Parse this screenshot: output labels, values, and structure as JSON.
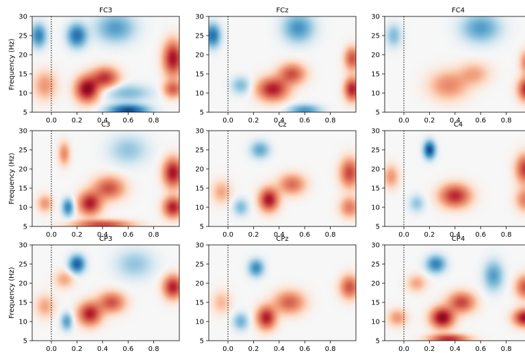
{
  "chart_data": [
    {
      "type": "heatmap",
      "title": "FC3",
      "ylabel": "Frequency (Hz)",
      "xlim": [
        -0.15,
        1.0
      ],
      "ylim": [
        5,
        30
      ],
      "xticks": [
        "0.0",
        "0.2",
        "0.4",
        "0.6",
        "0.8"
      ],
      "yticks": [
        "5",
        "10",
        "15",
        "20",
        "25",
        "30"
      ],
      "event_marker_x": 0.0,
      "blobs": [
        {
          "x": 0.28,
          "y": 11,
          "sx": 0.06,
          "sy": 2.2,
          "v": 0.9
        },
        {
          "x": 0.42,
          "y": 14,
          "sx": 0.07,
          "sy": 1.8,
          "v": 0.65
        },
        {
          "x": 0.95,
          "y": 19,
          "sx": 0.05,
          "sy": 3.0,
          "v": 0.8
        },
        {
          "x": 0.95,
          "y": 11,
          "sx": 0.05,
          "sy": 1.5,
          "v": 0.5
        },
        {
          "x": -0.05,
          "y": 12,
          "sx": 0.06,
          "sy": 2.5,
          "v": 0.3
        },
        {
          "x": 0.2,
          "y": 25,
          "sx": 0.05,
          "sy": 2.0,
          "v": -0.7
        },
        {
          "x": -0.1,
          "y": 25,
          "sx": 0.04,
          "sy": 2.0,
          "v": -0.6
        },
        {
          "x": 0.6,
          "y": 5.5,
          "sx": 0.1,
          "sy": 1.0,
          "v": -0.9
        },
        {
          "x": 0.5,
          "y": 27,
          "sx": 0.1,
          "sy": 2.5,
          "v": -0.45
        },
        {
          "x": 0.6,
          "y": 10,
          "sx": 0.12,
          "sy": 1.5,
          "v": -0.3
        }
      ]
    },
    {
      "type": "heatmap",
      "title": "FCz",
      "ylabel": "",
      "xlim": [
        -0.15,
        1.0
      ],
      "ylim": [
        5,
        30
      ],
      "xticks": [
        "0.0",
        "0.2",
        "0.4",
        "0.6",
        "0.8"
      ],
      "yticks": [
        "5",
        "10",
        "15",
        "20",
        "25",
        "30"
      ],
      "event_marker_x": 0.0,
      "blobs": [
        {
          "x": 0.35,
          "y": 11,
          "sx": 0.08,
          "sy": 2.0,
          "v": 0.75
        },
        {
          "x": 0.5,
          "y": 15,
          "sx": 0.07,
          "sy": 1.8,
          "v": 0.55
        },
        {
          "x": 0.97,
          "y": 11,
          "sx": 0.04,
          "sy": 2.0,
          "v": 0.75
        },
        {
          "x": 0.97,
          "y": 19,
          "sx": 0.04,
          "sy": 2.0,
          "v": 0.55
        },
        {
          "x": -0.12,
          "y": 25,
          "sx": 0.04,
          "sy": 2.0,
          "v": -0.7
        },
        {
          "x": 0.55,
          "y": 27,
          "sx": 0.08,
          "sy": 2.5,
          "v": -0.5
        },
        {
          "x": 0.6,
          "y": 5.5,
          "sx": 0.08,
          "sy": 1.0,
          "v": -0.5
        },
        {
          "x": 0.1,
          "y": 12,
          "sx": 0.05,
          "sy": 1.5,
          "v": -0.3
        }
      ]
    },
    {
      "type": "heatmap",
      "title": "FC4",
      "ylabel": "",
      "xlim": [
        -0.15,
        1.0
      ],
      "ylim": [
        5,
        30
      ],
      "xticks": [
        "0.0",
        "0.2",
        "0.4",
        "0.6",
        "0.8"
      ],
      "yticks": [
        "5",
        "10",
        "15",
        "20",
        "25",
        "30"
      ],
      "event_marker_x": 0.0,
      "blobs": [
        {
          "x": 0.35,
          "y": 12,
          "sx": 0.1,
          "sy": 2.5,
          "v": 0.35
        },
        {
          "x": 0.55,
          "y": 15,
          "sx": 0.08,
          "sy": 2.0,
          "v": 0.25
        },
        {
          "x": 0.97,
          "y": 11,
          "sx": 0.05,
          "sy": 2.0,
          "v": 0.8
        },
        {
          "x": 0.97,
          "y": 18,
          "sx": 0.04,
          "sy": 2.0,
          "v": 0.45
        },
        {
          "x": 0.6,
          "y": 27,
          "sx": 0.1,
          "sy": 2.5,
          "v": -0.45
        },
        {
          "x": -0.08,
          "y": 25,
          "sx": 0.04,
          "sy": 2.0,
          "v": -0.3
        }
      ]
    },
    {
      "type": "heatmap",
      "title": "C3",
      "ylabel": "Frequency (Hz)",
      "xlim": [
        -0.15,
        1.0
      ],
      "ylim": [
        5,
        30
      ],
      "xticks": [
        "0.0",
        "0.2",
        "0.4",
        "0.6",
        "0.8"
      ],
      "yticks": [
        "5",
        "10",
        "15",
        "20",
        "25",
        "30"
      ],
      "event_marker_x": 0.0,
      "blobs": [
        {
          "x": 0.3,
          "y": 11,
          "sx": 0.06,
          "sy": 2.0,
          "v": 0.75
        },
        {
          "x": 0.45,
          "y": 15,
          "sx": 0.08,
          "sy": 2.0,
          "v": 0.55
        },
        {
          "x": 0.95,
          "y": 19,
          "sx": 0.05,
          "sy": 2.5,
          "v": 0.8
        },
        {
          "x": 0.95,
          "y": 10,
          "sx": 0.05,
          "sy": 1.8,
          "v": 0.75
        },
        {
          "x": 0.1,
          "y": 24,
          "sx": 0.03,
          "sy": 2.0,
          "v": 0.35
        },
        {
          "x": 0.13,
          "y": 10,
          "sx": 0.03,
          "sy": 1.5,
          "v": -0.6
        },
        {
          "x": -0.05,
          "y": 11,
          "sx": 0.04,
          "sy": 1.5,
          "v": 0.3
        },
        {
          "x": 0.4,
          "y": 5.5,
          "sx": 0.15,
          "sy": 0.8,
          "v": 0.6
        },
        {
          "x": 0.6,
          "y": 25,
          "sx": 0.1,
          "sy": 2.5,
          "v": -0.25
        }
      ]
    },
    {
      "type": "heatmap",
      "title": "Cz",
      "ylabel": "",
      "xlim": [
        -0.15,
        1.0
      ],
      "ylim": [
        5,
        30
      ],
      "xticks": [
        "0.0",
        "0.2",
        "0.4",
        "0.6",
        "0.8"
      ],
      "yticks": [
        "5",
        "10",
        "15",
        "20",
        "25",
        "30"
      ],
      "event_marker_x": 0.0,
      "blobs": [
        {
          "x": 0.32,
          "y": 12,
          "sx": 0.05,
          "sy": 2.0,
          "v": 0.8
        },
        {
          "x": 0.5,
          "y": 16,
          "sx": 0.07,
          "sy": 1.8,
          "v": 0.45
        },
        {
          "x": 0.95,
          "y": 19,
          "sx": 0.05,
          "sy": 2.5,
          "v": 0.6
        },
        {
          "x": 0.95,
          "y": 10,
          "sx": 0.05,
          "sy": 1.8,
          "v": 0.4
        },
        {
          "x": 0.25,
          "y": 25,
          "sx": 0.05,
          "sy": 1.5,
          "v": -0.4
        },
        {
          "x": 0.1,
          "y": 10,
          "sx": 0.04,
          "sy": 1.5,
          "v": -0.3
        },
        {
          "x": -0.05,
          "y": 14,
          "sx": 0.05,
          "sy": 2.0,
          "v": 0.25
        }
      ]
    },
    {
      "type": "heatmap",
      "title": "C4",
      "ylabel": "",
      "xlim": [
        -0.15,
        1.0
      ],
      "ylim": [
        5,
        30
      ],
      "xticks": [
        "0.0",
        "0.2",
        "0.4",
        "0.6",
        "0.8"
      ],
      "yticks": [
        "5",
        "10",
        "15",
        "20",
        "25",
        "30"
      ],
      "event_marker_x": 0.0,
      "blobs": [
        {
          "x": 0.4,
          "y": 13,
          "sx": 0.08,
          "sy": 2.0,
          "v": 0.7
        },
        {
          "x": 0.95,
          "y": 20,
          "sx": 0.05,
          "sy": 2.5,
          "v": 0.65
        },
        {
          "x": 0.95,
          "y": 12,
          "sx": 0.05,
          "sy": 2.0,
          "v": 0.4
        },
        {
          "x": 0.2,
          "y": 25,
          "sx": 0.03,
          "sy": 1.5,
          "v": -0.9
        },
        {
          "x": -0.1,
          "y": 18,
          "sx": 0.04,
          "sy": 2.0,
          "v": 0.3
        },
        {
          "x": 0.1,
          "y": 11,
          "sx": 0.04,
          "sy": 1.5,
          "v": -0.25
        }
      ]
    },
    {
      "type": "heatmap",
      "title": "CP3",
      "ylabel": "Frequency (Hz)",
      "xlim": [
        -0.15,
        1.0
      ],
      "ylim": [
        5,
        30
      ],
      "xticks": [
        "0.0",
        "0.2",
        "0.4",
        "0.6",
        "0.8"
      ],
      "yticks": [
        "5",
        "10",
        "15",
        "20",
        "25",
        "30"
      ],
      "event_marker_x": 0.0,
      "blobs": [
        {
          "x": 0.3,
          "y": 12,
          "sx": 0.06,
          "sy": 2.0,
          "v": 0.75
        },
        {
          "x": 0.47,
          "y": 15,
          "sx": 0.07,
          "sy": 1.8,
          "v": 0.55
        },
        {
          "x": 0.95,
          "y": 19,
          "sx": 0.05,
          "sy": 2.0,
          "v": 0.75
        },
        {
          "x": 0.2,
          "y": 25,
          "sx": 0.04,
          "sy": 1.5,
          "v": -0.8
        },
        {
          "x": 0.12,
          "y": 10,
          "sx": 0.03,
          "sy": 1.5,
          "v": -0.45
        },
        {
          "x": -0.05,
          "y": 14,
          "sx": 0.05,
          "sy": 2.0,
          "v": 0.25
        },
        {
          "x": 0.1,
          "y": 21,
          "sx": 0.05,
          "sy": 1.5,
          "v": 0.25
        },
        {
          "x": 0.65,
          "y": 25,
          "sx": 0.1,
          "sy": 2.5,
          "v": -0.25
        }
      ]
    },
    {
      "type": "heatmap",
      "title": "CPz",
      "ylabel": "",
      "xlim": [
        -0.15,
        1.0
      ],
      "ylim": [
        5,
        30
      ],
      "xticks": [
        "0.0",
        "0.2",
        "0.4",
        "0.6",
        "0.8"
      ],
      "yticks": [
        "5",
        "10",
        "15",
        "20",
        "25",
        "30"
      ],
      "event_marker_x": 0.0,
      "blobs": [
        {
          "x": 0.3,
          "y": 11,
          "sx": 0.05,
          "sy": 2.0,
          "v": 0.75
        },
        {
          "x": 0.48,
          "y": 15,
          "sx": 0.08,
          "sy": 2.0,
          "v": 0.5
        },
        {
          "x": 0.95,
          "y": 19,
          "sx": 0.05,
          "sy": 2.0,
          "v": 0.55
        },
        {
          "x": 0.22,
          "y": 24,
          "sx": 0.04,
          "sy": 1.5,
          "v": -0.55
        },
        {
          "x": 0.1,
          "y": 10,
          "sx": 0.04,
          "sy": 1.5,
          "v": -0.35
        },
        {
          "x": -0.05,
          "y": 15,
          "sx": 0.05,
          "sy": 2.0,
          "v": 0.2
        }
      ]
    },
    {
      "type": "heatmap",
      "title": "CP4",
      "ylabel": "",
      "xlim": [
        -0.15,
        1.0
      ],
      "ylim": [
        5,
        30
      ],
      "xticks": [
        "0.0",
        "0.2",
        "0.4",
        "0.6",
        "0.8"
      ],
      "yticks": [
        "5",
        "10",
        "15",
        "20",
        "25",
        "30"
      ],
      "event_marker_x": 0.0,
      "blobs": [
        {
          "x": 0.3,
          "y": 11,
          "sx": 0.06,
          "sy": 1.8,
          "v": 0.9
        },
        {
          "x": 0.45,
          "y": 15,
          "sx": 0.07,
          "sy": 1.8,
          "v": 0.6
        },
        {
          "x": 0.95,
          "y": 11,
          "sx": 0.06,
          "sy": 1.5,
          "v": 0.85
        },
        {
          "x": 0.95,
          "y": 19,
          "sx": 0.05,
          "sy": 2.0,
          "v": 0.55
        },
        {
          "x": 0.25,
          "y": 25,
          "sx": 0.05,
          "sy": 1.5,
          "v": -0.6
        },
        {
          "x": 0.7,
          "y": 22,
          "sx": 0.05,
          "sy": 2.5,
          "v": -0.45
        },
        {
          "x": 0.35,
          "y": 5.5,
          "sx": 0.1,
          "sy": 0.8,
          "v": 0.7
        },
        {
          "x": -0.05,
          "y": 11,
          "sx": 0.05,
          "sy": 1.5,
          "v": 0.3
        },
        {
          "x": 0.1,
          "y": 20,
          "sx": 0.05,
          "sy": 1.5,
          "v": 0.25
        }
      ]
    }
  ]
}
